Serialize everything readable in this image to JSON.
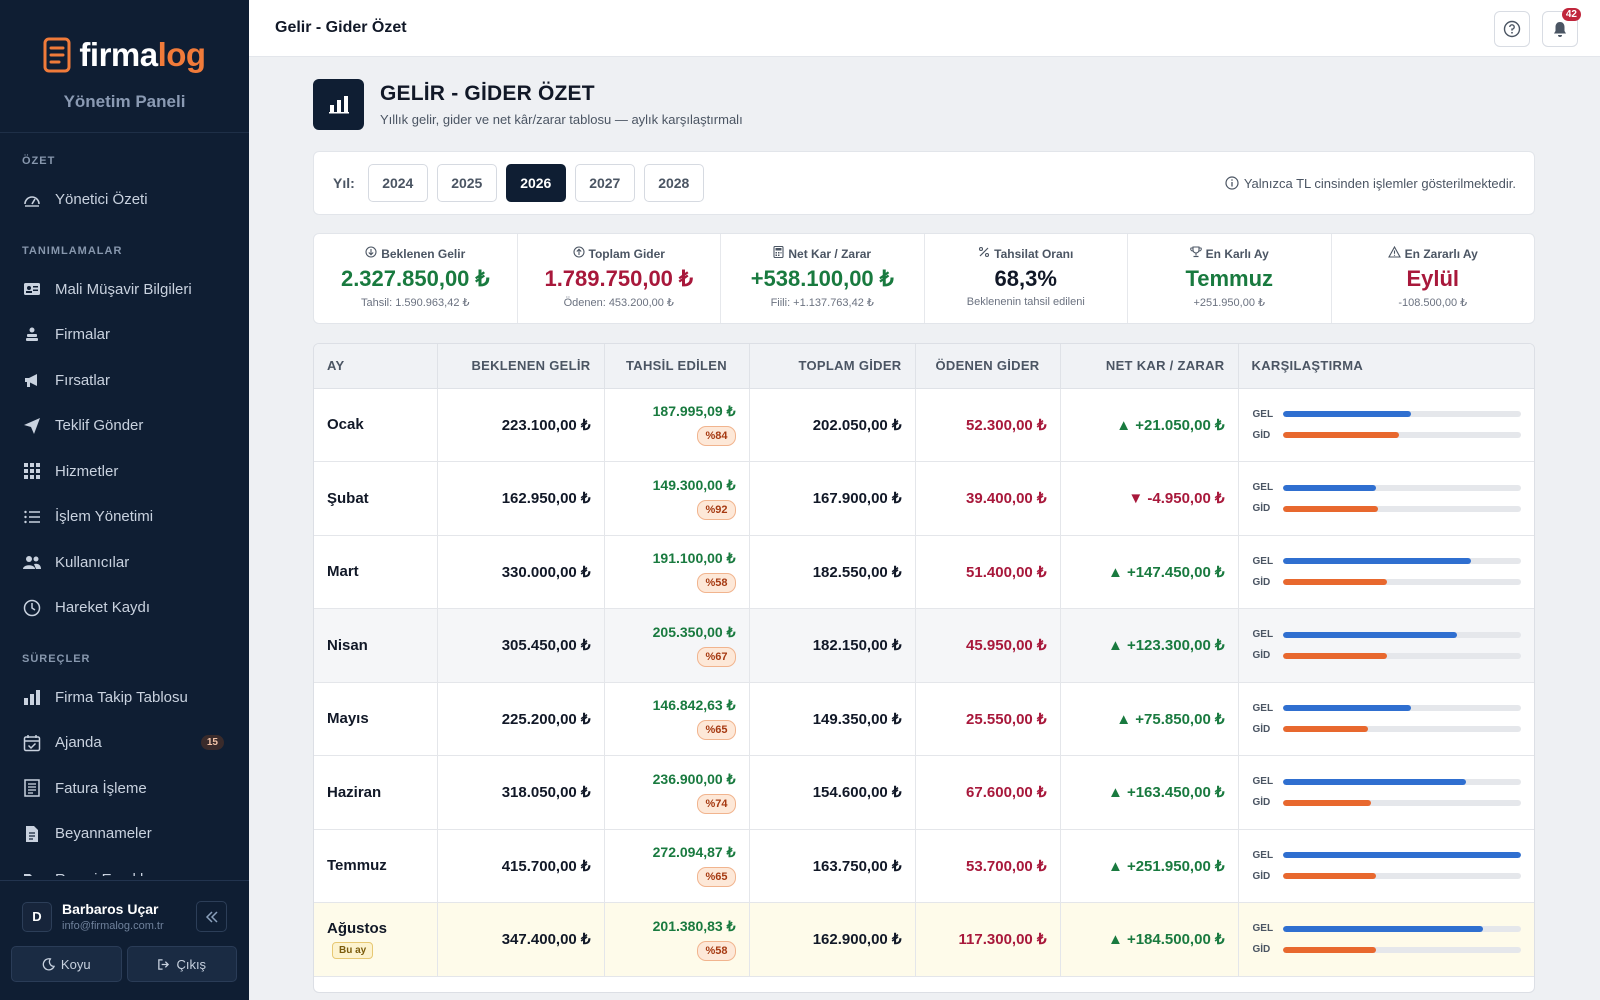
{
  "app": {
    "logo_part1": "firma",
    "logo_part2": "log",
    "panel_title": "Yönetim Paneli"
  },
  "sidebar": {
    "sections": [
      {
        "title": "ÖZET",
        "items": [
          {
            "label": "Yönetici Özeti",
            "icon": "dashboard-icon"
          }
        ]
      },
      {
        "title": "TANIMLAMALAR",
        "items": [
          {
            "label": "Mali Müşavir Bilgileri",
            "icon": "id-card-icon"
          },
          {
            "label": "Firmalar",
            "icon": "sitemap-icon"
          },
          {
            "label": "Fırsatlar",
            "icon": "megaphone-icon"
          },
          {
            "label": "Teklif Gönder",
            "icon": "send-icon"
          },
          {
            "label": "Hizmetler",
            "icon": "grid-icon"
          },
          {
            "label": "İşlem Yönetimi",
            "icon": "list-icon"
          },
          {
            "label": "Kullanıcılar",
            "icon": "users-icon"
          },
          {
            "label": "Hareket Kaydı",
            "icon": "clock-icon"
          }
        ]
      },
      {
        "title": "SÜREÇLER",
        "items": [
          {
            "label": "Firma Takip Tablosu",
            "icon": "bar-chart-icon"
          },
          {
            "label": "Ajanda",
            "icon": "calendar-icon",
            "badge": "15"
          },
          {
            "label": "Fatura İşleme",
            "icon": "invoice-icon"
          },
          {
            "label": "Beyannameler",
            "icon": "document-icon"
          },
          {
            "label": "Resmi Evraklar",
            "icon": "folder-icon"
          }
        ]
      }
    ],
    "user": {
      "initial": "D",
      "name": "Barbaros Uçar",
      "email": "info@firmalog.com.tr"
    },
    "theme_label": "Koyu",
    "logout_label": "Çıkış"
  },
  "topbar": {
    "title": "Gelir - Gider Özet",
    "notifications": "42"
  },
  "page": {
    "title": "GELİR - GİDER ÖZET",
    "subtitle": "Yıllık gelir, gider ve net kâr/zarar tablosu — aylık karşılaştırmalı"
  },
  "years": {
    "label": "Yıl:",
    "options": [
      "2024",
      "2025",
      "2026",
      "2027",
      "2028"
    ],
    "selected": "2026",
    "note": "Yalnızca TL cinsinden işlemler gösterilmektedir."
  },
  "kpis": [
    {
      "label": "Beklenen Gelir",
      "value": "2.327.850,00 ₺",
      "sub": "Tahsil: 1.590.963,42 ₺",
      "color": "#197a3f",
      "icon": "arrow-down-circle-icon"
    },
    {
      "label": "Toplam Gider",
      "value": "1.789.750,00 ₺",
      "sub": "Ödenen: 453.200,00 ₺",
      "color": "#a8183b",
      "icon": "arrow-up-circle-icon"
    },
    {
      "label": "Net Kar / Zarar",
      "value": "+538.100,00 ₺",
      "sub": "Fiili: +1.137.763,42 ₺",
      "color": "#197a3f",
      "icon": "calculator-icon"
    },
    {
      "label": "Tahsilat Oranı",
      "value": "68,3%",
      "sub": "Beklenenin tahsil edileni",
      "color": "#111827",
      "icon": "percent-icon"
    },
    {
      "label": "En Karlı Ay",
      "value": "Temmuz",
      "sub": "+251.950,00 ₺",
      "color": "#197a3f",
      "icon": "trophy-icon"
    },
    {
      "label": "En Zararlı Ay",
      "value": "Eylül",
      "sub": "-108.500,00 ₺",
      "color": "#a8183b",
      "icon": "warning-icon"
    }
  ],
  "table": {
    "headers": [
      "AY",
      "BEKLENEN GELİR",
      "TAHSİL EDİLEN",
      "TOPLAM GİDER",
      "ÖDENEN GİDER",
      "NET KAR / ZARAR",
      "KARŞILAŞTIRMA"
    ],
    "gel_label": "GEL",
    "gid_label": "GİD",
    "current_badge": "Bu ay",
    "rows": [
      {
        "month": "Ocak",
        "expected": "223.100,00 ₺",
        "collected": "187.995,09 ₺",
        "pct": "%84",
        "total_exp": "202.050,00 ₺",
        "paid_exp": "52.300,00 ₺",
        "net": "▲ +21.050,00 ₺",
        "positive": true,
        "gel": 0.54,
        "gid": 0.49
      },
      {
        "month": "Şubat",
        "expected": "162.950,00 ₺",
        "collected": "149.300,00 ₺",
        "pct": "%92",
        "total_exp": "167.900,00 ₺",
        "paid_exp": "39.400,00 ₺",
        "net": "▼ -4.950,00 ₺",
        "positive": false,
        "gel": 0.39,
        "gid": 0.4
      },
      {
        "month": "Mart",
        "expected": "330.000,00 ₺",
        "collected": "191.100,00 ₺",
        "pct": "%58",
        "total_exp": "182.550,00 ₺",
        "paid_exp": "51.400,00 ₺",
        "net": "▲ +147.450,00 ₺",
        "positive": true,
        "gel": 0.79,
        "gid": 0.44
      },
      {
        "month": "Nisan",
        "expected": "305.450,00 ₺",
        "collected": "205.350,00 ₺",
        "pct": "%67",
        "total_exp": "182.150,00 ₺",
        "paid_exp": "45.950,00 ₺",
        "net": "▲ +123.300,00 ₺",
        "positive": true,
        "gel": 0.73,
        "gid": 0.44,
        "highlight": true
      },
      {
        "month": "Mayıs",
        "expected": "225.200,00 ₺",
        "collected": "146.842,63 ₺",
        "pct": "%65",
        "total_exp": "149.350,00 ₺",
        "paid_exp": "25.550,00 ₺",
        "net": "▲ +75.850,00 ₺",
        "positive": true,
        "gel": 0.54,
        "gid": 0.36
      },
      {
        "month": "Haziran",
        "expected": "318.050,00 ₺",
        "collected": "236.900,00 ₺",
        "pct": "%74",
        "total_exp": "154.600,00 ₺",
        "paid_exp": "67.600,00 ₺",
        "net": "▲ +163.450,00 ₺",
        "positive": true,
        "gel": 0.77,
        "gid": 0.37
      },
      {
        "month": "Temmuz",
        "expected": "415.700,00 ₺",
        "collected": "272.094,87 ₺",
        "pct": "%65",
        "total_exp": "163.750,00 ₺",
        "paid_exp": "53.700,00 ₺",
        "net": "▲ +251.950,00 ₺",
        "positive": true,
        "gel": 1.0,
        "gid": 0.39
      },
      {
        "month": "Ağustos",
        "expected": "347.400,00 ₺",
        "collected": "201.380,83 ₺",
        "pct": "%58",
        "total_exp": "162.900,00 ₺",
        "paid_exp": "117.300,00 ₺",
        "net": "▲ +184.500,00 ₺",
        "positive": true,
        "gel": 0.84,
        "gid": 0.39,
        "current": true
      }
    ]
  }
}
